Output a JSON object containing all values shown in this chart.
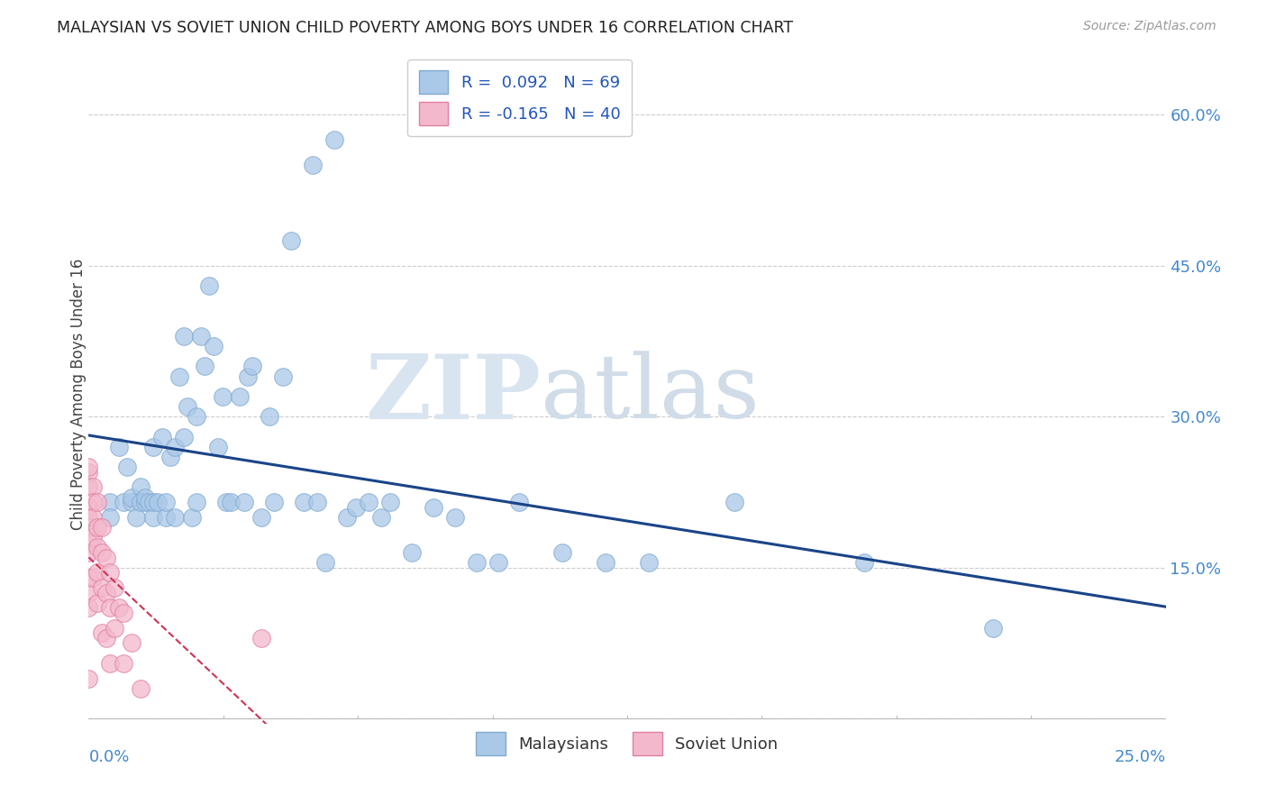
{
  "title": "MALAYSIAN VS SOVIET UNION CHILD POVERTY AMONG BOYS UNDER 16 CORRELATION CHART",
  "source": "Source: ZipAtlas.com",
  "ylabel": "Child Poverty Among Boys Under 16",
  "yticks": [
    0.0,
    0.15,
    0.3,
    0.45,
    0.6
  ],
  "ytick_labels": [
    "",
    "15.0%",
    "30.0%",
    "45.0%",
    "60.0%"
  ],
  "xlim": [
    0.0,
    0.25
  ],
  "ylim": [
    -0.005,
    0.65
  ],
  "malaysian_color": "#aac8e8",
  "malaysian_edge": "#80aad0",
  "soviet_color": "#f4b8cc",
  "soviet_edge": "#e080a0",
  "trend_malaysian_color": "#1a4488",
  "trend_soviet_color": "#cc3355",
  "legend_R_malaysian": "R =  0.092   N = 69",
  "legend_R_soviet": "R = -0.165   N = 40",
  "legend_label_malaysian": "Malaysians",
  "legend_label_soviet": "Soviet Union",
  "watermark_ZIP": "ZIP",
  "watermark_atlas": "atlas",
  "malaysian_x": [
    0.005,
    0.005,
    0.007,
    0.008,
    0.009,
    0.01,
    0.01,
    0.011,
    0.012,
    0.012,
    0.013,
    0.013,
    0.014,
    0.015,
    0.015,
    0.015,
    0.016,
    0.017,
    0.018,
    0.018,
    0.019,
    0.02,
    0.02,
    0.021,
    0.022,
    0.022,
    0.023,
    0.024,
    0.025,
    0.025,
    0.026,
    0.027,
    0.028,
    0.029,
    0.03,
    0.031,
    0.032,
    0.033,
    0.035,
    0.036,
    0.037,
    0.038,
    0.04,
    0.042,
    0.043,
    0.045,
    0.047,
    0.05,
    0.052,
    0.053,
    0.055,
    0.057,
    0.06,
    0.062,
    0.065,
    0.068,
    0.07,
    0.075,
    0.08,
    0.085,
    0.09,
    0.095,
    0.1,
    0.11,
    0.12,
    0.13,
    0.15,
    0.18,
    0.21
  ],
  "malaysian_y": [
    0.215,
    0.2,
    0.27,
    0.215,
    0.25,
    0.215,
    0.22,
    0.2,
    0.23,
    0.215,
    0.215,
    0.22,
    0.215,
    0.2,
    0.215,
    0.27,
    0.215,
    0.28,
    0.2,
    0.215,
    0.26,
    0.27,
    0.2,
    0.34,
    0.28,
    0.38,
    0.31,
    0.2,
    0.215,
    0.3,
    0.38,
    0.35,
    0.43,
    0.37,
    0.27,
    0.32,
    0.215,
    0.215,
    0.32,
    0.215,
    0.34,
    0.35,
    0.2,
    0.3,
    0.215,
    0.34,
    0.475,
    0.215,
    0.55,
    0.215,
    0.155,
    0.575,
    0.2,
    0.21,
    0.215,
    0.2,
    0.215,
    0.165,
    0.21,
    0.2,
    0.155,
    0.155,
    0.215,
    0.165,
    0.155,
    0.155,
    0.215,
    0.155,
    0.09
  ],
  "soviet_x": [
    0.0,
    0.0,
    0.0,
    0.0,
    0.0,
    0.0,
    0.0,
    0.0,
    0.0,
    0.0,
    0.0,
    0.0,
    0.001,
    0.001,
    0.001,
    0.001,
    0.001,
    0.002,
    0.002,
    0.002,
    0.002,
    0.002,
    0.003,
    0.003,
    0.003,
    0.003,
    0.004,
    0.004,
    0.004,
    0.005,
    0.005,
    0.005,
    0.006,
    0.006,
    0.007,
    0.008,
    0.008,
    0.01,
    0.012,
    0.04
  ],
  "soviet_y": [
    0.245,
    0.25,
    0.23,
    0.21,
    0.2,
    0.19,
    0.175,
    0.165,
    0.14,
    0.125,
    0.11,
    0.04,
    0.23,
    0.215,
    0.2,
    0.18,
    0.14,
    0.215,
    0.19,
    0.17,
    0.145,
    0.115,
    0.19,
    0.165,
    0.13,
    0.085,
    0.16,
    0.125,
    0.08,
    0.145,
    0.11,
    0.055,
    0.13,
    0.09,
    0.11,
    0.105,
    0.055,
    0.075,
    0.03,
    0.08
  ]
}
